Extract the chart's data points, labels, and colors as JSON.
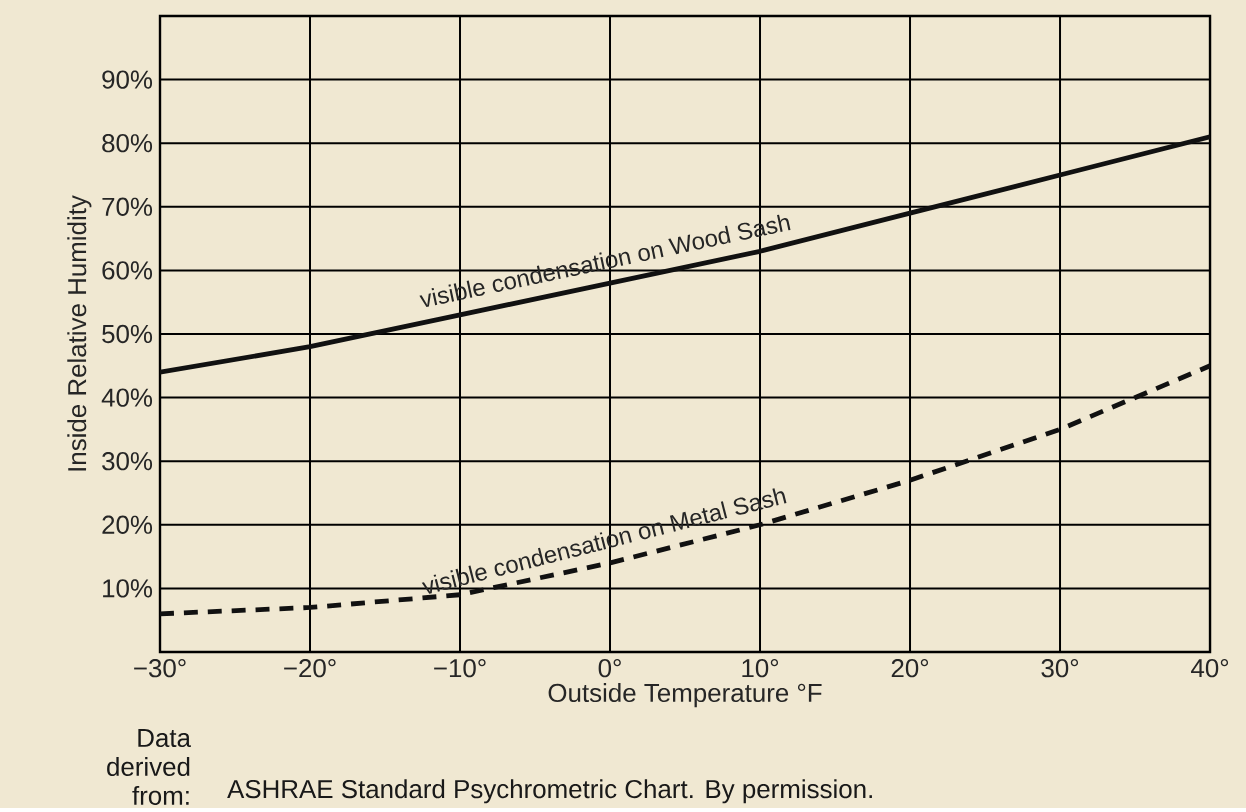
{
  "chart_data": {
    "type": "line",
    "xlabel": "Outside Temperature °F",
    "ylabel": "Inside Relative Humidity",
    "x": [
      -30,
      -20,
      -10,
      0,
      10,
      20,
      30,
      40
    ],
    "series": [
      {
        "name": "visible condensation on Wood Sash",
        "color": "#111111",
        "line_style": "solid",
        "values": [
          44,
          48,
          53,
          58,
          63,
          69,
          75,
          81
        ]
      },
      {
        "name": "visible condensation on Metal Sash",
        "color": "#111111",
        "line_style": "dashed",
        "values": [
          6,
          7,
          9,
          14,
          20,
          27,
          35,
          45
        ]
      }
    ],
    "xlim": [
      -30,
      40
    ],
    "ylim": [
      0,
      100
    ],
    "xticks": [
      {
        "value": -30,
        "label": "−30°"
      },
      {
        "value": -20,
        "label": "−20°"
      },
      {
        "value": -10,
        "label": "−10°"
      },
      {
        "value": 0,
        "label": "0°"
      },
      {
        "value": 10,
        "label": "10°"
      },
      {
        "value": 20,
        "label": "20°"
      },
      {
        "value": 30,
        "label": "30°"
      },
      {
        "value": 40,
        "label": "40°"
      }
    ],
    "yticks": [
      {
        "value": 0,
        "label": null
      },
      {
        "value": 10,
        "label": "10%"
      },
      {
        "value": 20,
        "label": "20%"
      },
      {
        "value": 30,
        "label": "30%"
      },
      {
        "value": 40,
        "label": "40%"
      },
      {
        "value": 50,
        "label": "50%"
      },
      {
        "value": 60,
        "label": "60%"
      },
      {
        "value": 70,
        "label": "70%"
      },
      {
        "value": 80,
        "label": "80%"
      },
      {
        "value": 90,
        "label": "90%"
      },
      {
        "value": 100,
        "label": null
      }
    ],
    "grid": true,
    "annotations": [
      "Data derived from:",
      "ASHRAE Standard Psychrometric Chart. By permission."
    ]
  }
}
